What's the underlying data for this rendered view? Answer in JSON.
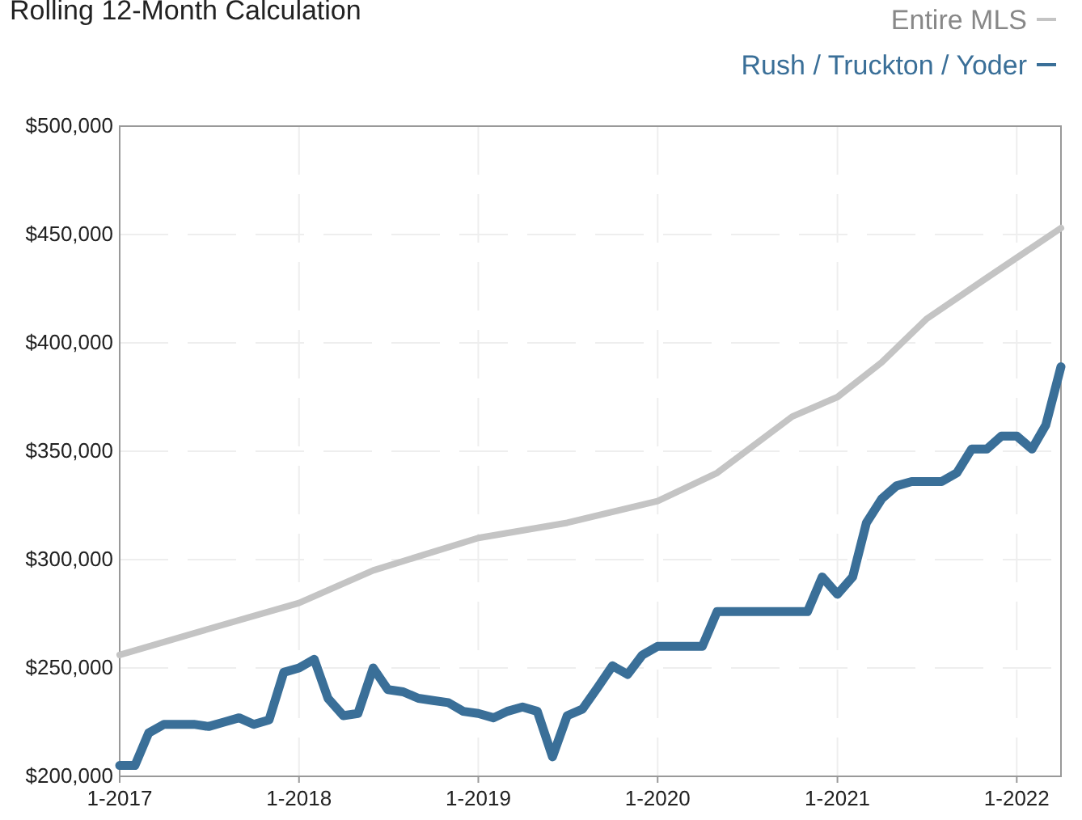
{
  "chart_data": {
    "type": "line",
    "title": "Rolling 12-Month Calculation",
    "x": [
      "2017-01",
      "2017-02",
      "2017-03",
      "2017-04",
      "2017-05",
      "2017-06",
      "2017-07",
      "2017-08",
      "2017-09",
      "2017-10",
      "2017-11",
      "2017-12",
      "2018-01",
      "2018-02",
      "2018-03",
      "2018-04",
      "2018-05",
      "2018-06",
      "2018-07",
      "2018-08",
      "2018-09",
      "2018-10",
      "2018-11",
      "2018-12",
      "2019-01",
      "2019-02",
      "2019-03",
      "2019-04",
      "2019-05",
      "2019-06",
      "2019-07",
      "2019-08",
      "2019-09",
      "2019-10",
      "2019-11",
      "2019-12",
      "2020-01",
      "2020-02",
      "2020-03",
      "2020-04",
      "2020-05",
      "2020-06",
      "2020-07",
      "2020-08",
      "2020-09",
      "2020-10",
      "2020-11",
      "2020-12",
      "2021-01",
      "2021-02",
      "2021-03",
      "2021-04",
      "2021-05",
      "2021-06",
      "2021-07",
      "2021-08",
      "2021-09",
      "2021-10",
      "2021-11",
      "2021-12",
      "2022-01",
      "2022-02",
      "2022-03",
      "2022-04"
    ],
    "series": [
      {
        "name": "Entire MLS",
        "color": "#c4c4c4",
        "x": [
          "2017-01",
          "2017-07",
          "2018-01",
          "2018-06",
          "2019-01",
          "2019-07",
          "2020-01",
          "2020-05",
          "2020-10",
          "2021-01",
          "2021-04",
          "2021-07",
          "2021-11",
          "2022-02",
          "2022-04"
        ],
        "values": [
          256000,
          268000,
          280000,
          295000,
          310000,
          317000,
          327000,
          340000,
          366000,
          375000,
          391000,
          411000,
          430000,
          444000,
          453000
        ]
      },
      {
        "name": "Rush / Truckton / Yoder",
        "color": "#3a6f98",
        "values": [
          205000,
          205000,
          220000,
          224000,
          224000,
          224000,
          223000,
          225000,
          227000,
          224000,
          226000,
          248000,
          250000,
          254000,
          236000,
          228000,
          229000,
          250000,
          240000,
          239000,
          236000,
          235000,
          234000,
          230000,
          229000,
          227000,
          230000,
          232000,
          230000,
          209000,
          228000,
          231000,
          241000,
          251000,
          247000,
          256000,
          260000,
          260000,
          260000,
          260000,
          276000,
          276000,
          276000,
          276000,
          276000,
          276000,
          276000,
          292000,
          284000,
          292000,
          317000,
          328000,
          334000,
          336000,
          336000,
          336000,
          340000,
          351000,
          351000,
          357000,
          357000,
          351000,
          362000,
          389000
        ]
      }
    ],
    "xlim": [
      "2017-01",
      "2022-04"
    ],
    "xticks": [
      {
        "value": "2017-01",
        "label": "1-2017"
      },
      {
        "value": "2018-01",
        "label": "1-2018"
      },
      {
        "value": "2019-01",
        "label": "1-2019"
      },
      {
        "value": "2020-01",
        "label": "1-2020"
      },
      {
        "value": "2021-01",
        "label": "1-2021"
      },
      {
        "value": "2022-01",
        "label": "1-2022"
      }
    ],
    "ylim": [
      200000,
      500000
    ],
    "yticks": [
      {
        "value": 200000,
        "label": "$200,000"
      },
      {
        "value": 250000,
        "label": "$250,000"
      },
      {
        "value": 300000,
        "label": "$300,000"
      },
      {
        "value": 350000,
        "label": "$350,000"
      },
      {
        "value": 400000,
        "label": "$400,000"
      },
      {
        "value": 450000,
        "label": "$450,000"
      },
      {
        "value": 500000,
        "label": "$500,000"
      }
    ],
    "grid": true,
    "legend": "top right"
  }
}
